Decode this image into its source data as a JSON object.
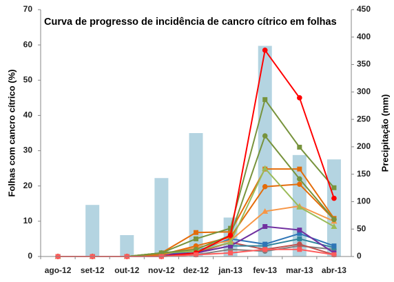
{
  "chart_data": {
    "type": "line",
    "title": "Curva de progresso de incidência de cancro cítrico em folhas",
    "y_label": "Folhas com cancro cítrico (%)",
    "y2_label": "Precipitação (mm)",
    "categories": [
      "ago-12",
      "set-12",
      "out-12",
      "nov-12",
      "dez-12",
      "jan-13",
      "fev-13",
      "mar-13",
      "abr-13"
    ],
    "ylim": [
      0,
      70
    ],
    "yticks": [
      0,
      10,
      20,
      30,
      40,
      50,
      60,
      70
    ],
    "y2lim": [
      0,
      450
    ],
    "y2ticks": [
      0,
      50,
      100,
      150,
      200,
      250,
      300,
      350,
      400,
      450
    ],
    "series": [
      {
        "type": "bar",
        "axis": "y2",
        "color": "#b4d4e1",
        "values": [
          null,
          94,
          39,
          143,
          225,
          71,
          384,
          185,
          177
        ]
      },
      {
        "color": "#7f7f7f",
        "marker": "circle",
        "values": [
          0,
          0,
          0,
          0,
          0.5,
          2,
          1.5,
          3,
          2
        ]
      },
      {
        "color": "#c0504d",
        "marker": "circle",
        "values": [
          0,
          0,
          0,
          0,
          1,
          4,
          2,
          3.5,
          0.5
        ]
      },
      {
        "color": "#31859c",
        "marker": "square",
        "values": [
          0,
          0,
          0,
          0,
          1,
          3,
          3,
          5,
          2.5
        ]
      },
      {
        "color": "#2e75b6",
        "marker": "square",
        "values": [
          0,
          0,
          0,
          0.5,
          1.5,
          5,
          3.5,
          6.5,
          3
        ]
      },
      {
        "color": "#7030a0",
        "marker": "square",
        "values": [
          0,
          0,
          0,
          0.5,
          1,
          3,
          8.5,
          7.5,
          1
        ]
      },
      {
        "color": "#f79646",
        "marker": "triangle",
        "values": [
          0,
          0,
          0,
          0.5,
          2.5,
          4.5,
          12.8,
          14.3,
          10
        ]
      },
      {
        "color": "#e46c0a",
        "marker": "circle",
        "values": [
          0,
          0,
          0,
          0.5,
          3,
          5.5,
          19.8,
          20.5,
          10.5
        ]
      },
      {
        "color": "#e46c0a",
        "marker": "square",
        "values": [
          0,
          0,
          0,
          1,
          6.8,
          7,
          24.8,
          24.8,
          10.8
        ]
      },
      {
        "color": "#9bbb59",
        "marker": "triangle",
        "values": [
          0,
          0,
          0,
          1,
          1.5,
          4,
          25,
          14,
          8.5
        ]
      },
      {
        "color": "#77933c",
        "marker": "circle",
        "values": [
          0,
          0,
          0,
          1,
          2,
          6,
          34.2,
          22,
          10.5
        ]
      },
      {
        "color": "#77933c",
        "marker": "square",
        "values": [
          0,
          0,
          0,
          1,
          5,
          8,
          44.5,
          31,
          19.5
        ]
      },
      {
        "color": "#ff0000",
        "marker": "circle",
        "values": [
          0,
          0,
          0,
          0,
          1,
          6,
          58.5,
          45,
          16.5
        ]
      },
      {
        "color": "#ff5b5b",
        "marker": "square",
        "values": [
          0,
          0,
          0,
          0,
          0.5,
          1,
          2,
          2,
          0.5
        ]
      }
    ]
  }
}
